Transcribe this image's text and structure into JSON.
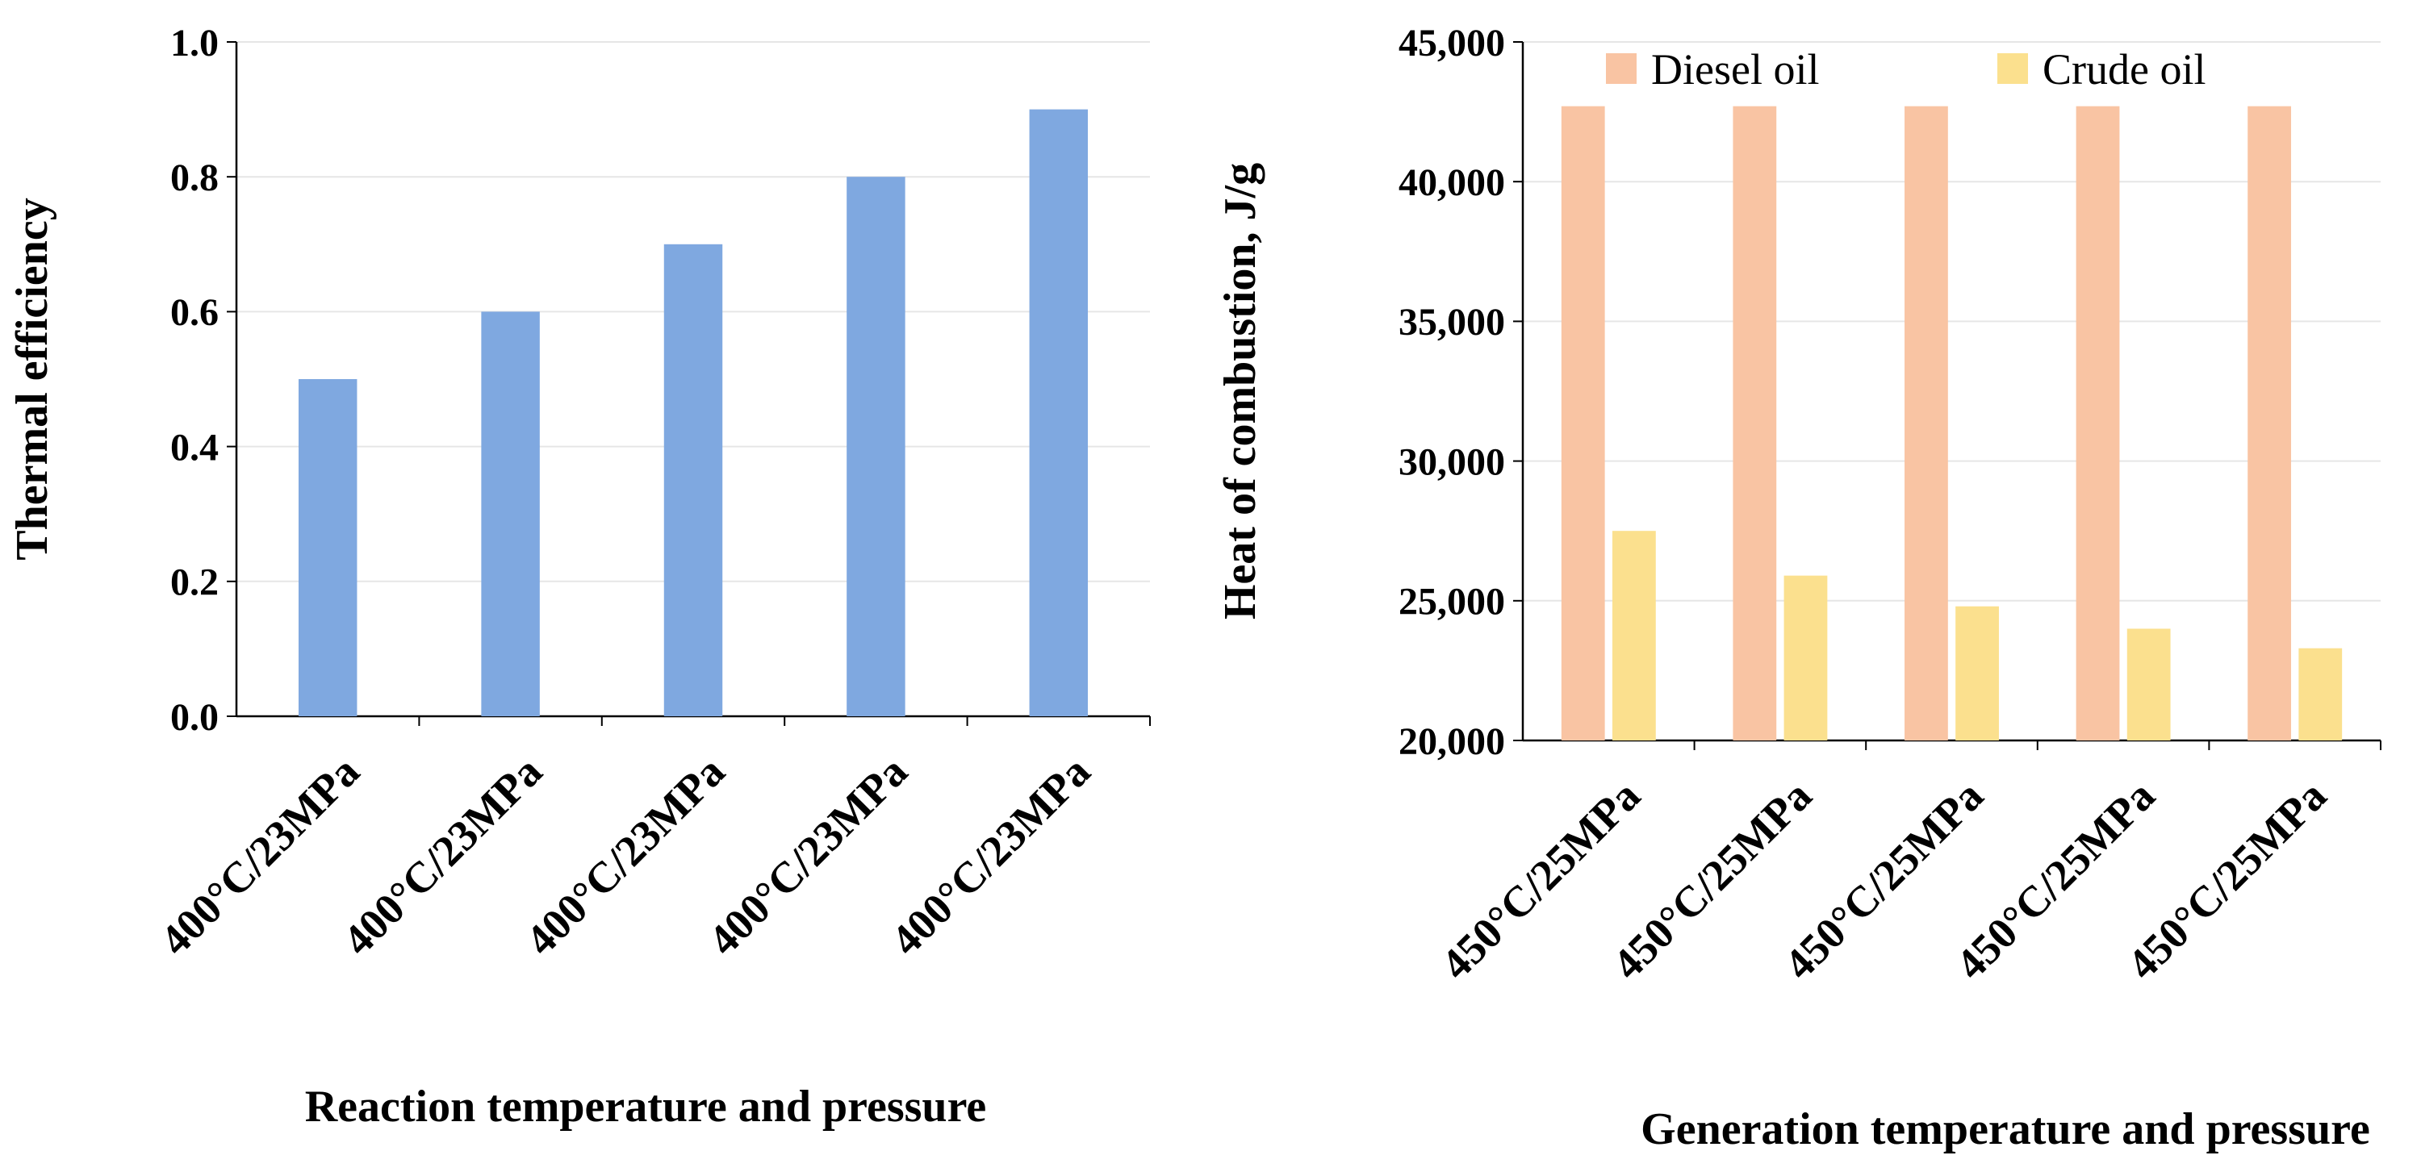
{
  "chart_data": [
    {
      "type": "bar",
      "title": "",
      "xlabel": "Reaction temperature and pressure",
      "ylabel": "Thermal efficiency",
      "ylim": [
        0,
        1.0
      ],
      "yticks": [
        0.0,
        0.2,
        0.4,
        0.6,
        0.8,
        1.0
      ],
      "ytick_labels": [
        "0.0",
        "0.2",
        "0.4",
        "0.6",
        "0.8",
        "1.0"
      ],
      "grid": true,
      "categories": [
        "400°C/23MPa",
        "400°C/23MPa",
        "400°C/23MPa",
        "400°C/23MPa",
        "400°C/23MPa"
      ],
      "series": [
        {
          "name": "Thermal efficiency",
          "color": "#7fa8e0",
          "values": [
            0.5,
            0.6,
            0.7,
            0.8,
            0.9
          ]
        }
      ]
    },
    {
      "type": "bar",
      "title": "",
      "xlabel": "Generation temperature and pressure",
      "ylabel": "Heat of combustion, J/g",
      "ylim": [
        20000,
        45000
      ],
      "yticks": [
        20000,
        25000,
        30000,
        35000,
        40000,
        45000
      ],
      "ytick_labels": [
        "20,000",
        "25,000",
        "30,000",
        "35,000",
        "40,000",
        "45,000"
      ],
      "grid": true,
      "legend_position": "top",
      "categories": [
        "450°C/25MPa",
        "450°C/25MPa",
        "450°C/25MPa",
        "450°C/25MPa",
        "450°C/25MPa"
      ],
      "series": [
        {
          "name": "Diesel oil",
          "color": "#f9c4a3",
          "values": [
            42700,
            42700,
            42700,
            42700,
            42700
          ]
        },
        {
          "name": "Crude oil",
          "color": "#fbe08e",
          "values": [
            27500,
            25900,
            24800,
            24000,
            23300
          ]
        }
      ]
    }
  ]
}
